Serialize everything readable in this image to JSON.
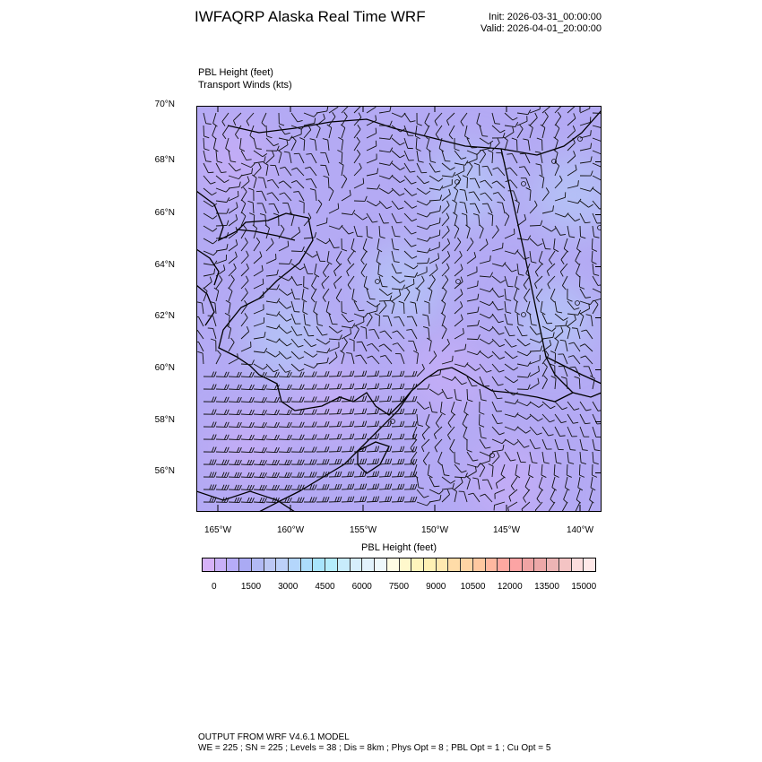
{
  "header": {
    "title": "IWFAQRP Alaska Real Time WRF",
    "init": "Init: 2026-03-31_00:00:00",
    "valid": "Valid: 2026-04-01_20:00:00"
  },
  "fields": {
    "field1": "PBL Height   (feet)",
    "field2": "Transport Winds   (kts)"
  },
  "map": {
    "lat_labels": [
      "70°N",
      "68°N",
      "66°N",
      "64°N",
      "62°N",
      "60°N",
      "58°N",
      "56°N"
    ],
    "lon_labels": [
      "165°W",
      "160°W",
      "155°W",
      "150°W",
      "145°W",
      "140°W"
    ],
    "background_colors": [
      "#b4aaf4",
      "#c4acf6",
      "#b4c4f6"
    ]
  },
  "colorbar": {
    "title": "PBL Height  (feet)",
    "labels": [
      "0",
      "1500",
      "3000",
      "4500",
      "6000",
      "7500",
      "9000",
      "10500",
      "12000",
      "13500",
      "15000"
    ],
    "colors": [
      "#d6b2f8",
      "#c8b0f8",
      "#b6acf8",
      "#aaaaf4",
      "#b2baf4",
      "#bcc8f4",
      "#bcd0f8",
      "#b4d6fc",
      "#acdcfc",
      "#a8e4fc",
      "#b4ecfc",
      "#c8ecfc",
      "#d6eefc",
      "#e2f2fc",
      "#eef8fc",
      "#fffce4",
      "#fff8cc",
      "#fff4bc",
      "#fff0b4",
      "#ffe8b0",
      "#ffdca8",
      "#ffd4a4",
      "#ffc8a0",
      "#ffb8a0",
      "#ffa8a0",
      "#fca4a4",
      "#f0a4a4",
      "#eca8a8",
      "#ecb4b4",
      "#f4c4c4",
      "#fcdcdc",
      "#ffe8e8"
    ]
  },
  "footer": {
    "line1": "OUTPUT FROM WRF V4.6.1 MODEL",
    "line2": "WE = 225 ; SN = 225 ; Levels = 38 ; Dis = 8km ; Phys Opt = 8 ; PBL Opt = 1 ; Cu Opt = 5"
  }
}
